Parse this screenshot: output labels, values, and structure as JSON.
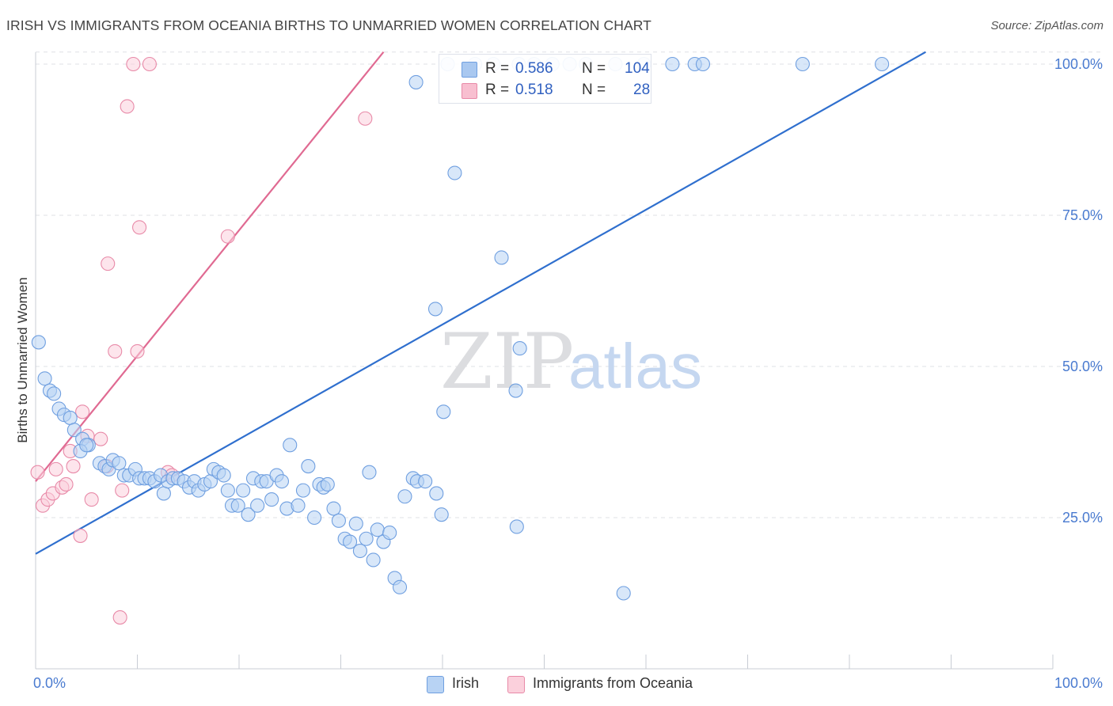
{
  "title": "IRISH VS IMMIGRANTS FROM OCEANIA BIRTHS TO UNMARRIED WOMEN CORRELATION CHART",
  "source": "Source: ZipAtlas.com",
  "watermark": {
    "zip": "ZIP",
    "atlas": "atlas"
  },
  "legend": {
    "rows": [
      {
        "r_label": "R =",
        "r_value": "0.586",
        "n_label": "N =",
        "n_value": "104",
        "color": "#a9c8f0",
        "border": "#6f9fe0"
      },
      {
        "r_label": "R =",
        "r_value": "0.518",
        "n_label": "N =",
        "n_value": "28",
        "color": "#f8bfd0",
        "border": "#e88aa8"
      }
    ]
  },
  "bottom_legend": [
    {
      "label": "Irish",
      "color": "#b8d3f4",
      "border": "#6f9fe0"
    },
    {
      "label": "Immigrants from Oceania",
      "color": "#fbd0dc",
      "border": "#e88aa8"
    }
  ],
  "chart_data": {
    "type": "scatter",
    "title": "IRISH VS IMMIGRANTS FROM OCEANIA BIRTHS TO UNMARRIED WOMEN CORRELATION CHART",
    "xlabel": "",
    "ylabel": "Births to Unmarried Women",
    "xlim": [
      0,
      100
    ],
    "ylim": [
      0,
      102
    ],
    "x_tick_labels": [
      "0.0%",
      "100.0%"
    ],
    "y_tick_labels": [
      "25.0%",
      "50.0%",
      "75.0%",
      "100.0%"
    ],
    "y_ticks": [
      25,
      50,
      75,
      100
    ],
    "grid": "horizontal dashed",
    "legend_position": "top-center",
    "series": [
      {
        "name": "Irish",
        "color": "#6f9fe0",
        "fill": "#b8d3f4",
        "trend": {
          "x": [
            0,
            87.5
          ],
          "y": [
            19,
            102
          ]
        },
        "points": [
          [
            0.3,
            54
          ],
          [
            0.9,
            48
          ],
          [
            1.4,
            46
          ],
          [
            1.8,
            45.5
          ],
          [
            2.3,
            43
          ],
          [
            2.8,
            42
          ],
          [
            3.4,
            41.5
          ],
          [
            3.8,
            39.5
          ],
          [
            4.6,
            38
          ],
          [
            5.2,
            37
          ],
          [
            4.4,
            36
          ],
          [
            5.0,
            37
          ],
          [
            6.3,
            34
          ],
          [
            6.8,
            33.5
          ],
          [
            7.2,
            33
          ],
          [
            7.6,
            34.5
          ],
          [
            8.2,
            34
          ],
          [
            8.7,
            32
          ],
          [
            9.2,
            32
          ],
          [
            9.8,
            33
          ],
          [
            10.2,
            31.5
          ],
          [
            10.7,
            31.5
          ],
          [
            11.2,
            31.5
          ],
          [
            11.7,
            31
          ],
          [
            12.3,
            32
          ],
          [
            12.6,
            29
          ],
          [
            13.0,
            31
          ],
          [
            13.5,
            31.5
          ],
          [
            14.0,
            31.5
          ],
          [
            14.6,
            31
          ],
          [
            15.1,
            30
          ],
          [
            15.6,
            31
          ],
          [
            16.0,
            29.5
          ],
          [
            16.6,
            30.5
          ],
          [
            17.2,
            31
          ],
          [
            17.5,
            33
          ],
          [
            18.0,
            32.5
          ],
          [
            18.5,
            32
          ],
          [
            18.9,
            29.5
          ],
          [
            19.3,
            27
          ],
          [
            19.9,
            27
          ],
          [
            20.4,
            29.5
          ],
          [
            20.9,
            25.5
          ],
          [
            21.4,
            31.5
          ],
          [
            21.8,
            27
          ],
          [
            22.2,
            31
          ],
          [
            22.7,
            31
          ],
          [
            23.2,
            28
          ],
          [
            23.7,
            32
          ],
          [
            24.2,
            31
          ],
          [
            24.7,
            26.5
          ],
          [
            25.0,
            37
          ],
          [
            25.8,
            27
          ],
          [
            26.3,
            29.5
          ],
          [
            26.8,
            33.5
          ],
          [
            27.4,
            25
          ],
          [
            27.9,
            30.5
          ],
          [
            28.3,
            30
          ],
          [
            28.7,
            30.5
          ],
          [
            29.3,
            26.5
          ],
          [
            29.8,
            24.5
          ],
          [
            30.4,
            21.5
          ],
          [
            30.9,
            21
          ],
          [
            31.5,
            24
          ],
          [
            31.9,
            19.5
          ],
          [
            32.5,
            21.5
          ],
          [
            32.8,
            32.5
          ],
          [
            33.2,
            18
          ],
          [
            33.6,
            23
          ],
          [
            34.2,
            21
          ],
          [
            34.8,
            22.5
          ],
          [
            35.3,
            15
          ],
          [
            35.8,
            13.5
          ],
          [
            36.3,
            28.5
          ],
          [
            37.1,
            31.5
          ],
          [
            37.5,
            31
          ],
          [
            38.3,
            31
          ],
          [
            39.4,
            29
          ],
          [
            39.9,
            25.5
          ],
          [
            39.3,
            59.5
          ],
          [
            40.1,
            42.5
          ],
          [
            45.8,
            68
          ],
          [
            47.2,
            46
          ],
          [
            47.6,
            53
          ],
          [
            47.3,
            23.5
          ],
          [
            57.8,
            12.5
          ],
          [
            41.2,
            82
          ],
          [
            37.4,
            97
          ],
          [
            40.5,
            100
          ],
          [
            43.2,
            100
          ],
          [
            45,
            100
          ],
          [
            47.5,
            100
          ],
          [
            49,
            100
          ],
          [
            50.8,
            100
          ],
          [
            52.5,
            100
          ],
          [
            57,
            100
          ],
          [
            59.8,
            100
          ],
          [
            62.6,
            100
          ],
          [
            64.8,
            100
          ],
          [
            65.6,
            100
          ],
          [
            75.4,
            100
          ],
          [
            83.2,
            100
          ],
          [
            54.1,
            100
          ]
        ]
      },
      {
        "name": "Immigrants from Oceania",
        "color": "#e88aa8",
        "fill": "#fbd0dc",
        "trend": {
          "x": [
            0,
            34.2
          ],
          "y": [
            31,
            102
          ]
        },
        "points": [
          [
            0.2,
            32.5
          ],
          [
            0.7,
            27
          ],
          [
            1.2,
            28
          ],
          [
            1.7,
            29
          ],
          [
            2.0,
            33
          ],
          [
            2.6,
            30
          ],
          [
            3.0,
            30.5
          ],
          [
            3.4,
            36
          ],
          [
            3.7,
            33.5
          ],
          [
            4.4,
            22
          ],
          [
            4.6,
            42.5
          ],
          [
            5.1,
            38.5
          ],
          [
            5.5,
            28
          ],
          [
            6.4,
            38
          ],
          [
            7.0,
            33.5
          ],
          [
            7.1,
            67
          ],
          [
            7.8,
            52.5
          ],
          [
            8.3,
            8.5
          ],
          [
            8.5,
            29.5
          ],
          [
            9.0,
            93
          ],
          [
            9.6,
            100
          ],
          [
            10.0,
            52.5
          ],
          [
            10.2,
            73
          ],
          [
            11.2,
            100
          ],
          [
            13.0,
            32.5
          ],
          [
            13.4,
            32
          ],
          [
            18.9,
            71.5
          ],
          [
            32.4,
            91
          ]
        ]
      }
    ]
  }
}
